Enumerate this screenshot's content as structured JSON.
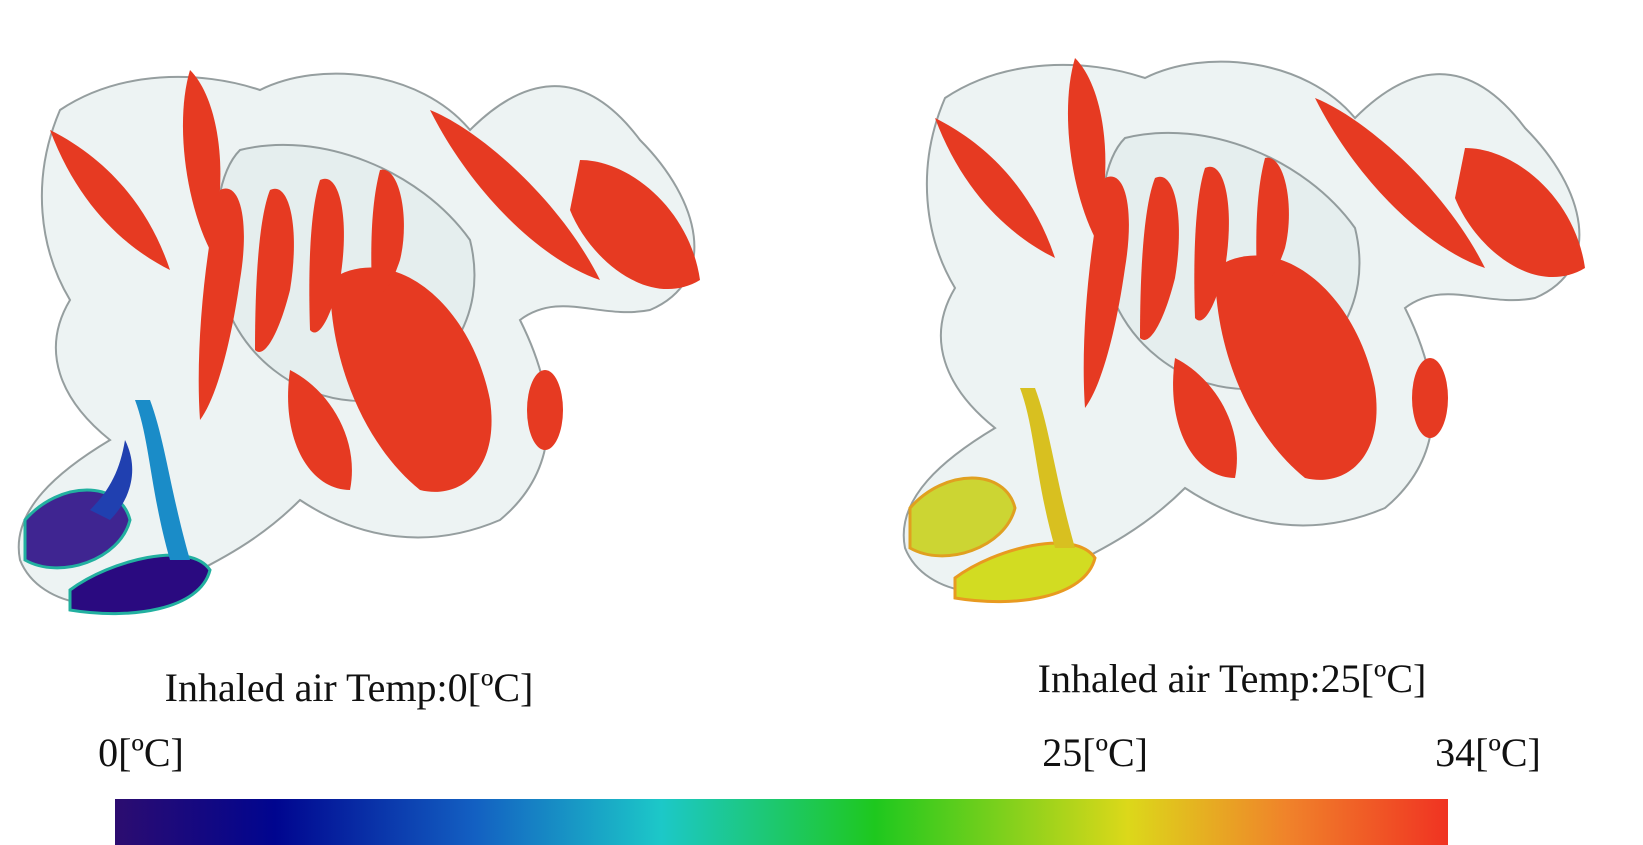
{
  "panels": [
    {
      "caption": "Inhaled air Temp:0[ºC]"
    },
    {
      "caption": "Inhaled air Temp:25[ºC]"
    }
  ],
  "colorbar": {
    "lim": [
      0,
      34
    ],
    "ticks": [
      {
        "value": 0,
        "label": "0[ºC]"
      },
      {
        "value": 25,
        "label": "25[ºC]"
      },
      {
        "value": 34,
        "label": "34[ºC]"
      }
    ]
  }
}
